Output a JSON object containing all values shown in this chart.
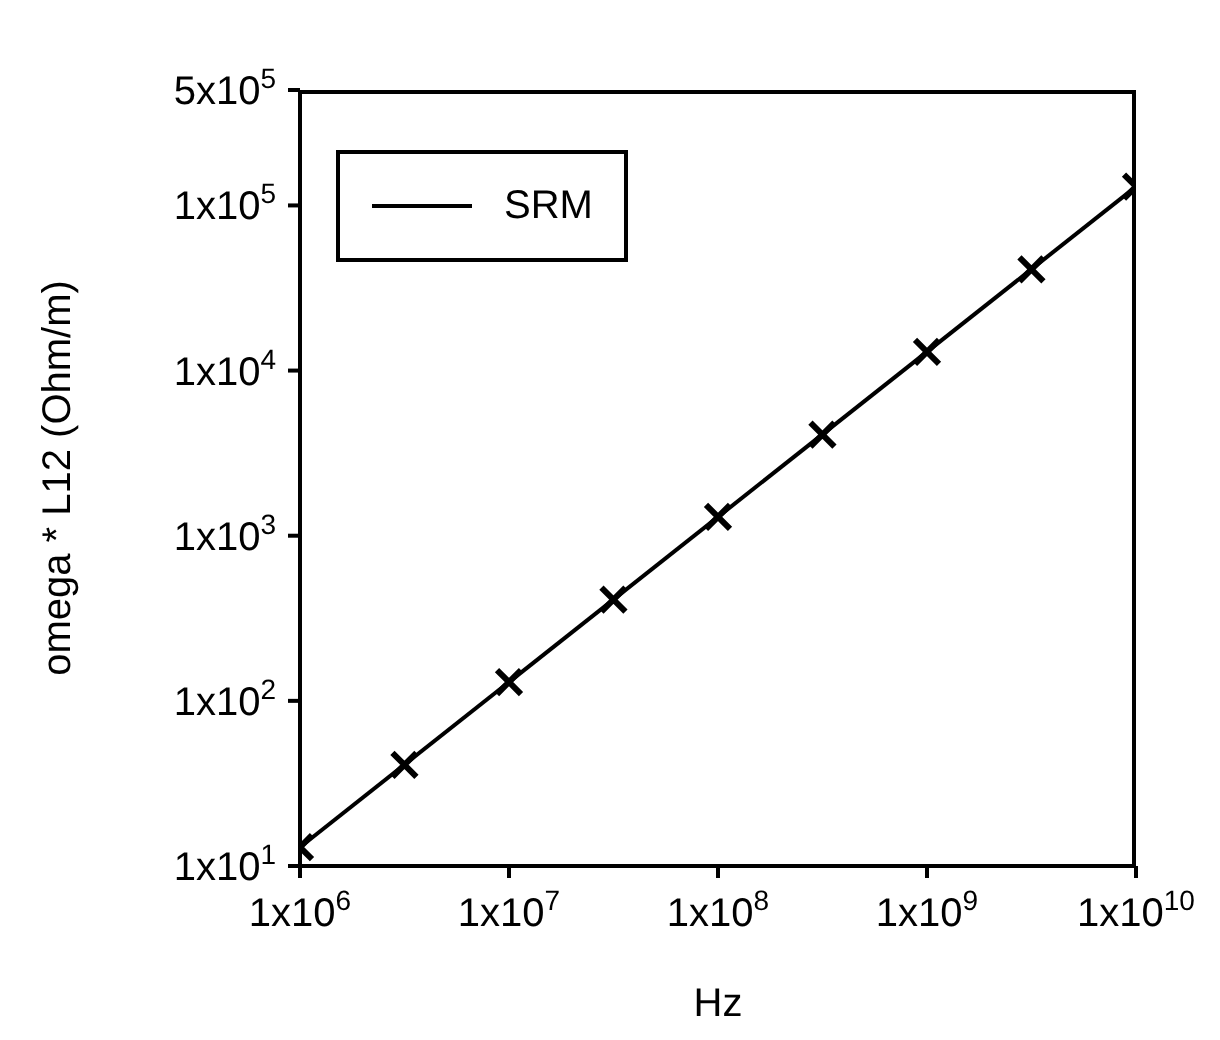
{
  "chart_data": {
    "type": "line",
    "xlabel": "Hz",
    "ylabel": "omega * L12 (Ohm/m)",
    "log": "xy",
    "xlim": [
      1000000,
      10000000000
    ],
    "ylim": [
      10,
      500000
    ],
    "xticks": [
      {
        "value": 1000000,
        "label": "1x10$^{6}$"
      },
      {
        "value": 10000000,
        "label": "1x10$^{7}$"
      },
      {
        "value": 100000000,
        "label": "1x10$^{8}$"
      },
      {
        "value": 1000000000,
        "label": "1x10$^{9}$"
      },
      {
        "value": 10000000000,
        "label": "1x10$^{10}$"
      }
    ],
    "yticks": [
      {
        "value": 10,
        "label": "1x10$^{1}$"
      },
      {
        "value": 100,
        "label": "1x10$^{2}$"
      },
      {
        "value": 1000,
        "label": "1x10$^{3}$"
      },
      {
        "value": 10000,
        "label": "1x10$^{4}$"
      },
      {
        "value": 100000,
        "label": "1x10$^{5}$"
      },
      {
        "value": 500000,
        "label": "5x10$^{5}$"
      }
    ],
    "legend": "top left",
    "grid": false,
    "series": [
      {
        "name": "SRM",
        "color": "#000000",
        "marker": "none",
        "line_style": "solid",
        "x": [
          1000000,
          10000000000
        ],
        "values": [
          13,
          130000
        ]
      },
      {
        "type": "scatter",
        "color": "#000000",
        "marker": "cross",
        "x": [
          1000000,
          3160000,
          10000000,
          31600000,
          100000000,
          316000000,
          1000000000,
          3160000000,
          10000000000
        ],
        "values": [
          13,
          41,
          130,
          410,
          1300,
          4100,
          13000,
          41000,
          130000
        ]
      }
    ]
  }
}
